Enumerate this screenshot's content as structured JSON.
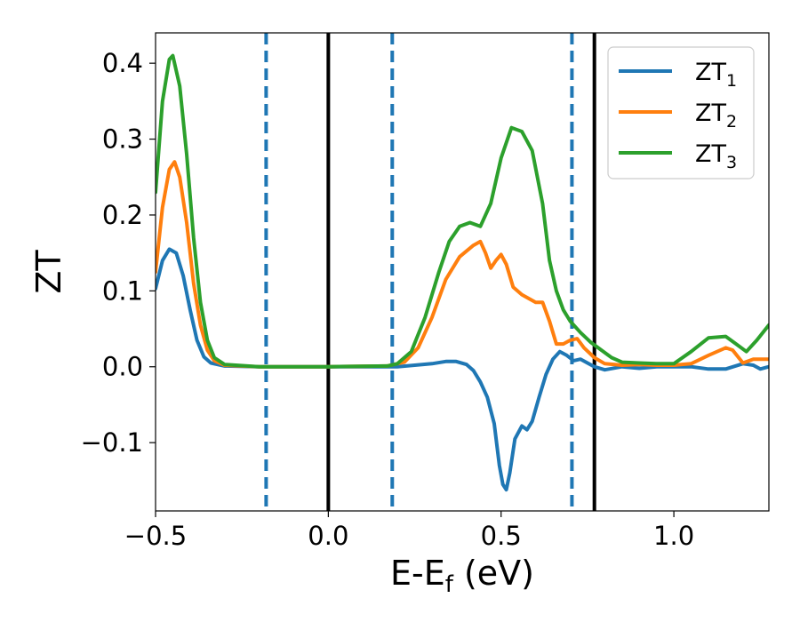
{
  "chart_data": {
    "type": "line",
    "xlabel_main": "E-E",
    "xlabel_sub": "f",
    "xlabel_unit": " (eV)",
    "ylabel": "ZT",
    "xlim": [
      -0.5,
      1.275
    ],
    "ylim": [
      -0.19,
      0.44
    ],
    "x_ticks": [
      {
        "value": -0.5,
        "label": "−0.5"
      },
      {
        "value": 0.0,
        "label": "0.0"
      },
      {
        "value": 0.5,
        "label": "0.5"
      },
      {
        "value": 1.0,
        "label": "1.0"
      }
    ],
    "y_ticks": [
      {
        "value": -0.1,
        "label": "−0.1"
      },
      {
        "value": 0.0,
        "label": "0.0"
      },
      {
        "value": 0.1,
        "label": "0.1"
      },
      {
        "value": 0.2,
        "label": "0.2"
      },
      {
        "value": 0.3,
        "label": "0.3"
      },
      {
        "value": 0.4,
        "label": "0.4"
      }
    ],
    "vlines": [
      {
        "x": -0.18,
        "style": "dashed",
        "color": "#1f77b4"
      },
      {
        "x": 0.0,
        "style": "solid",
        "color": "#000000"
      },
      {
        "x": 0.185,
        "style": "dashed",
        "color": "#1f77b4"
      },
      {
        "x": 0.705,
        "style": "dashed",
        "color": "#1f77b4"
      },
      {
        "x": 0.77,
        "style": "solid",
        "color": "#000000"
      }
    ],
    "legend_position": "top-right",
    "series": [
      {
        "name": "ZT",
        "sub": "1",
        "color": "#1f77b4",
        "points": [
          [
            -0.5,
            0.103
          ],
          [
            -0.48,
            0.14
          ],
          [
            -0.46,
            0.155
          ],
          [
            -0.44,
            0.15
          ],
          [
            -0.42,
            0.12
          ],
          [
            -0.4,
            0.075
          ],
          [
            -0.38,
            0.035
          ],
          [
            -0.36,
            0.013
          ],
          [
            -0.34,
            0.005
          ],
          [
            -0.3,
            0.001
          ],
          [
            -0.2,
            0.0
          ],
          [
            0.0,
            0.0
          ],
          [
            0.2,
            0.0
          ],
          [
            0.3,
            0.004
          ],
          [
            0.34,
            0.007
          ],
          [
            0.37,
            0.007
          ],
          [
            0.4,
            0.003
          ],
          [
            0.42,
            -0.005
          ],
          [
            0.44,
            -0.02
          ],
          [
            0.46,
            -0.04
          ],
          [
            0.48,
            -0.075
          ],
          [
            0.495,
            -0.13
          ],
          [
            0.505,
            -0.155
          ],
          [
            0.515,
            -0.162
          ],
          [
            0.525,
            -0.14
          ],
          [
            0.54,
            -0.095
          ],
          [
            0.56,
            -0.078
          ],
          [
            0.575,
            -0.083
          ],
          [
            0.59,
            -0.072
          ],
          [
            0.61,
            -0.04
          ],
          [
            0.63,
            -0.01
          ],
          [
            0.65,
            0.01
          ],
          [
            0.67,
            0.02
          ],
          [
            0.69,
            0.015
          ],
          [
            0.71,
            0.008
          ],
          [
            0.73,
            0.01
          ],
          [
            0.75,
            0.005
          ],
          [
            0.77,
            0.0
          ],
          [
            0.8,
            -0.004
          ],
          [
            0.85,
            0.0
          ],
          [
            0.9,
            -0.002
          ],
          [
            0.95,
            0.0
          ],
          [
            1.0,
            0.0
          ],
          [
            1.05,
            0.0
          ],
          [
            1.1,
            -0.003
          ],
          [
            1.15,
            -0.003
          ],
          [
            1.2,
            0.004
          ],
          [
            1.23,
            0.002
          ],
          [
            1.25,
            -0.003
          ],
          [
            1.275,
            0.0
          ]
        ]
      },
      {
        "name": "ZT",
        "sub": "2",
        "color": "#ff7f0e",
        "points": [
          [
            -0.5,
            0.125
          ],
          [
            -0.48,
            0.21
          ],
          [
            -0.46,
            0.26
          ],
          [
            -0.445,
            0.27
          ],
          [
            -0.43,
            0.25
          ],
          [
            -0.41,
            0.19
          ],
          [
            -0.39,
            0.11
          ],
          [
            -0.37,
            0.055
          ],
          [
            -0.35,
            0.022
          ],
          [
            -0.33,
            0.008
          ],
          [
            -0.3,
            0.002
          ],
          [
            -0.2,
            0.0
          ],
          [
            0.0,
            0.0
          ],
          [
            0.17,
            0.001
          ],
          [
            0.22,
            0.006
          ],
          [
            0.26,
            0.025
          ],
          [
            0.3,
            0.065
          ],
          [
            0.34,
            0.115
          ],
          [
            0.38,
            0.145
          ],
          [
            0.42,
            0.16
          ],
          [
            0.44,
            0.165
          ],
          [
            0.455,
            0.15
          ],
          [
            0.47,
            0.13
          ],
          [
            0.485,
            0.14
          ],
          [
            0.5,
            0.148
          ],
          [
            0.515,
            0.135
          ],
          [
            0.535,
            0.105
          ],
          [
            0.56,
            0.095
          ],
          [
            0.6,
            0.085
          ],
          [
            0.62,
            0.085
          ],
          [
            0.64,
            0.06
          ],
          [
            0.66,
            0.03
          ],
          [
            0.68,
            0.03
          ],
          [
            0.7,
            0.035
          ],
          [
            0.72,
            0.037
          ],
          [
            0.74,
            0.025
          ],
          [
            0.77,
            0.012
          ],
          [
            0.8,
            0.004
          ],
          [
            0.85,
            0.002
          ],
          [
            0.9,
            0.003
          ],
          [
            0.95,
            0.002
          ],
          [
            1.0,
            0.002
          ],
          [
            1.05,
            0.004
          ],
          [
            1.1,
            0.015
          ],
          [
            1.15,
            0.025
          ],
          [
            1.17,
            0.022
          ],
          [
            1.2,
            0.005
          ],
          [
            1.23,
            0.01
          ],
          [
            1.275,
            0.01
          ]
        ]
      },
      {
        "name": "ZT",
        "sub": "3",
        "color": "#2ca02c",
        "points": [
          [
            -0.5,
            0.23
          ],
          [
            -0.48,
            0.35
          ],
          [
            -0.46,
            0.405
          ],
          [
            -0.45,
            0.41
          ],
          [
            -0.43,
            0.37
          ],
          [
            -0.41,
            0.28
          ],
          [
            -0.39,
            0.17
          ],
          [
            -0.37,
            0.085
          ],
          [
            -0.35,
            0.035
          ],
          [
            -0.33,
            0.012
          ],
          [
            -0.3,
            0.003
          ],
          [
            -0.2,
            0.0
          ],
          [
            0.0,
            0.0
          ],
          [
            0.17,
            0.001
          ],
          [
            0.2,
            0.004
          ],
          [
            0.24,
            0.02
          ],
          [
            0.28,
            0.065
          ],
          [
            0.32,
            0.125
          ],
          [
            0.35,
            0.165
          ],
          [
            0.38,
            0.185
          ],
          [
            0.41,
            0.19
          ],
          [
            0.44,
            0.185
          ],
          [
            0.47,
            0.215
          ],
          [
            0.5,
            0.275
          ],
          [
            0.53,
            0.315
          ],
          [
            0.56,
            0.31
          ],
          [
            0.59,
            0.285
          ],
          [
            0.62,
            0.215
          ],
          [
            0.64,
            0.14
          ],
          [
            0.66,
            0.1
          ],
          [
            0.68,
            0.075
          ],
          [
            0.7,
            0.06
          ],
          [
            0.73,
            0.045
          ],
          [
            0.76,
            0.032
          ],
          [
            0.79,
            0.022
          ],
          [
            0.82,
            0.012
          ],
          [
            0.85,
            0.006
          ],
          [
            0.9,
            0.005
          ],
          [
            0.95,
            0.004
          ],
          [
            1.0,
            0.004
          ],
          [
            1.05,
            0.02
          ],
          [
            1.1,
            0.038
          ],
          [
            1.15,
            0.04
          ],
          [
            1.18,
            0.03
          ],
          [
            1.21,
            0.02
          ],
          [
            1.24,
            0.035
          ],
          [
            1.275,
            0.055
          ]
        ]
      }
    ]
  }
}
